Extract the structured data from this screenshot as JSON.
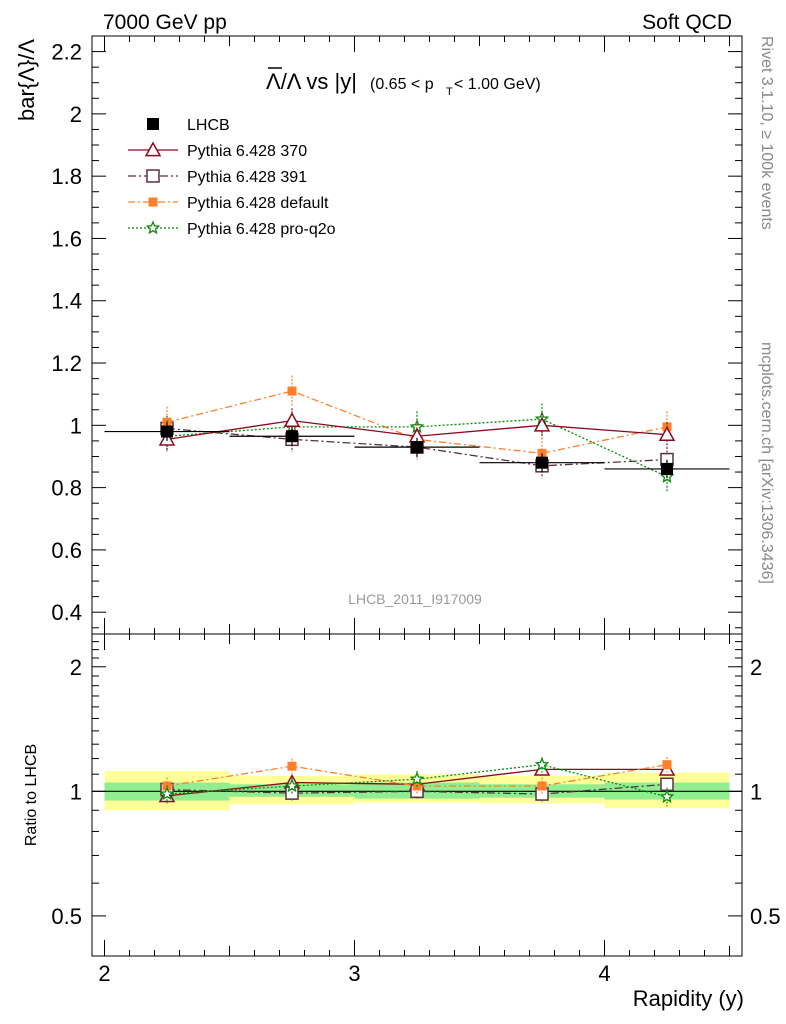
{
  "header": {
    "left": "7000 GeV pp",
    "right": "Soft QCD"
  },
  "side_labels": {
    "rivet": "Rivet 3.1.10, ≥ 100k events",
    "mcplots": "mcplots.cern.ch [arXiv:1306.3436]"
  },
  "watermark": "LHCB_2011_I917009",
  "colors": {
    "data": "#000000",
    "p370": "#8b0a1e",
    "p391": "#5a3040",
    "pdefault": "#ff7f2a",
    "pq2o": "#0a8a0a",
    "band_inner": "#90ee90",
    "band_outer": "#ffff99"
  },
  "chart_data": [
    {
      "type": "scatter",
      "title_parts": {
        "main": "Λ/Λ vs |y|",
        "cut_pre": "(0.65 < p",
        "cut_sub": "T",
        "cut_post": " < 1.00 GeV)"
      },
      "ylabel": "bar{Λ}/Λ",
      "xlim": [
        1.95,
        4.55
      ],
      "ylim": [
        0.33,
        2.25
      ],
      "yticks": [
        0.4,
        0.6,
        0.8,
        1.0,
        1.2,
        1.4,
        1.6,
        1.8,
        2.0,
        2.2
      ],
      "ytick_labels": [
        "0.4",
        "0.6",
        "0.8",
        "1",
        "1.2",
        "1.4",
        "1.6",
        "1.8",
        "2",
        "2.2"
      ],
      "x": [
        2.25,
        2.75,
        3.25,
        3.75,
        4.25
      ],
      "x_err": 0.25,
      "legend_position": "top-left",
      "series": [
        {
          "key": "data",
          "name": "LHCB",
          "style": "data",
          "values": [
            0.98,
            0.965,
            0.93,
            0.88,
            0.86
          ],
          "err": [
            0.03,
            0.03,
            0.03,
            0.03,
            0.03
          ]
        },
        {
          "key": "p370",
          "name": "Pythia 6.428 370",
          "style": "p370",
          "values": [
            0.955,
            1.015,
            0.965,
            1.0,
            0.97
          ],
          "err": [
            0.04,
            0.04,
            0.04,
            0.04,
            0.04
          ]
        },
        {
          "key": "p391",
          "name": "Pythia 6.428 391",
          "style": "p391",
          "values": [
            0.99,
            0.955,
            0.93,
            0.87,
            0.89
          ],
          "err": [
            0.04,
            0.04,
            0.04,
            0.04,
            0.04
          ]
        },
        {
          "key": "pdefault",
          "name": "Pythia 6.428 default",
          "style": "pdefault",
          "values": [
            1.01,
            1.11,
            0.955,
            0.91,
            0.995
          ],
          "err": [
            0.05,
            0.05,
            0.05,
            0.05,
            0.05
          ]
        },
        {
          "key": "pq2o",
          "name": "Pythia 6.428 pro-q2o",
          "style": "pq2o",
          "values": [
            0.965,
            0.995,
            0.995,
            1.02,
            0.835
          ],
          "err": [
            0.05,
            0.05,
            0.05,
            0.05,
            0.05
          ]
        }
      ]
    },
    {
      "type": "scatter",
      "ylabel": "Ratio to LHCB",
      "xlabel": "Rapidity (y)",
      "yscale": "log",
      "ylim": [
        0.4,
        2.4
      ],
      "yticks": [
        0.5,
        1,
        2
      ],
      "ytick_labels": [
        "0.5",
        "1",
        "2"
      ],
      "xticks": [
        2,
        3,
        4
      ],
      "xtick_labels": [
        "2",
        "3",
        "4"
      ],
      "bands": {
        "inner": [
          [
            0.95,
            1.05
          ],
          [
            0.97,
            1.04
          ],
          [
            0.96,
            1.05
          ],
          [
            0.965,
            1.04
          ],
          [
            0.955,
            1.05
          ]
        ],
        "outer": [
          [
            0.9,
            1.12
          ],
          [
            0.93,
            1.09
          ],
          [
            0.94,
            1.1
          ],
          [
            0.935,
            1.09
          ],
          [
            0.91,
            1.11
          ]
        ]
      },
      "series": [
        {
          "key": "p370",
          "values": [
            0.975,
            1.05,
            1.04,
            1.13,
            1.13
          ],
          "err": [
            0.04,
            0.04,
            0.04,
            0.04,
            0.04
          ]
        },
        {
          "key": "p391",
          "values": [
            1.01,
            0.99,
            1.0,
            0.985,
            1.04
          ],
          "err": [
            0.04,
            0.04,
            0.04,
            0.04,
            0.04
          ]
        },
        {
          "key": "pdefault",
          "values": [
            1.03,
            1.15,
            1.03,
            1.03,
            1.16
          ],
          "err": [
            0.05,
            0.05,
            0.05,
            0.05,
            0.05
          ]
        },
        {
          "key": "pq2o",
          "values": [
            0.985,
            1.03,
            1.07,
            1.16,
            0.97
          ],
          "err": [
            0.05,
            0.05,
            0.05,
            0.05,
            0.05
          ]
        }
      ]
    }
  ]
}
